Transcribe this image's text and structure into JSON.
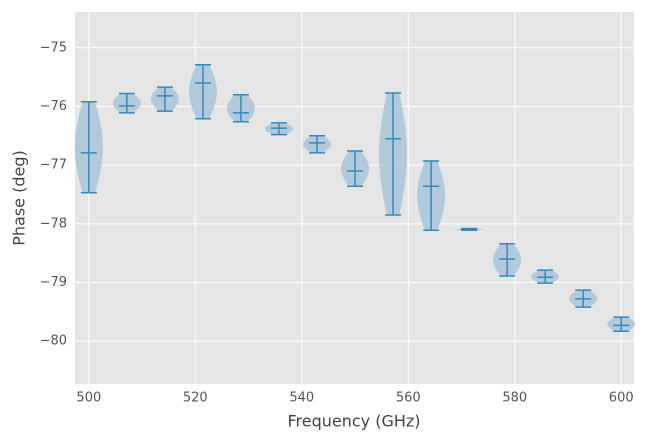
{
  "chart_data": {
    "type": "violin",
    "xlabel": "Frequency (GHz)",
    "ylabel": "Phase (deg)",
    "x": [
      500,
      507.14,
      514.29,
      521.43,
      528.57,
      535.71,
      542.86,
      550,
      557.14,
      564.29,
      571.43,
      578.57,
      585.71,
      592.86,
      600
    ],
    "max": [
      -75.92,
      -75.78,
      -75.67,
      -75.29,
      -75.8,
      -76.28,
      -76.5,
      -76.76,
      -75.77,
      -76.93,
      -78.08,
      -78.34,
      -78.79,
      -79.13,
      -79.59
    ],
    "min": [
      -77.47,
      -76.11,
      -76.08,
      -76.21,
      -76.26,
      -76.48,
      -76.79,
      -77.36,
      -77.85,
      -78.11,
      -78.11,
      -78.89,
      -79.01,
      -79.42,
      -79.83
    ],
    "mean": [
      -76.79,
      -75.99,
      -75.82,
      -75.6,
      -76.11,
      -76.37,
      -76.62,
      -77.1,
      -76.55,
      -77.36,
      -78.09,
      -78.6,
      -78.91,
      -79.28,
      -79.73
    ],
    "color": "#348abd",
    "fill": "#a8c4d8",
    "xlim": [
      497.4,
      602.4
    ],
    "ylim": [
      -80.73,
      -74.39
    ],
    "xticks": [
      500,
      520,
      540,
      560,
      580,
      600
    ],
    "yticks": [
      {
        "value": -75,
        "label": "−75"
      },
      {
        "value": -76,
        "label": "−76"
      },
      {
        "value": -77,
        "label": "−77"
      },
      {
        "value": -78,
        "label": "−78"
      },
      {
        "value": -79,
        "label": "−79"
      },
      {
        "value": -80,
        "label": "−80"
      }
    ],
    "grid": true
  }
}
